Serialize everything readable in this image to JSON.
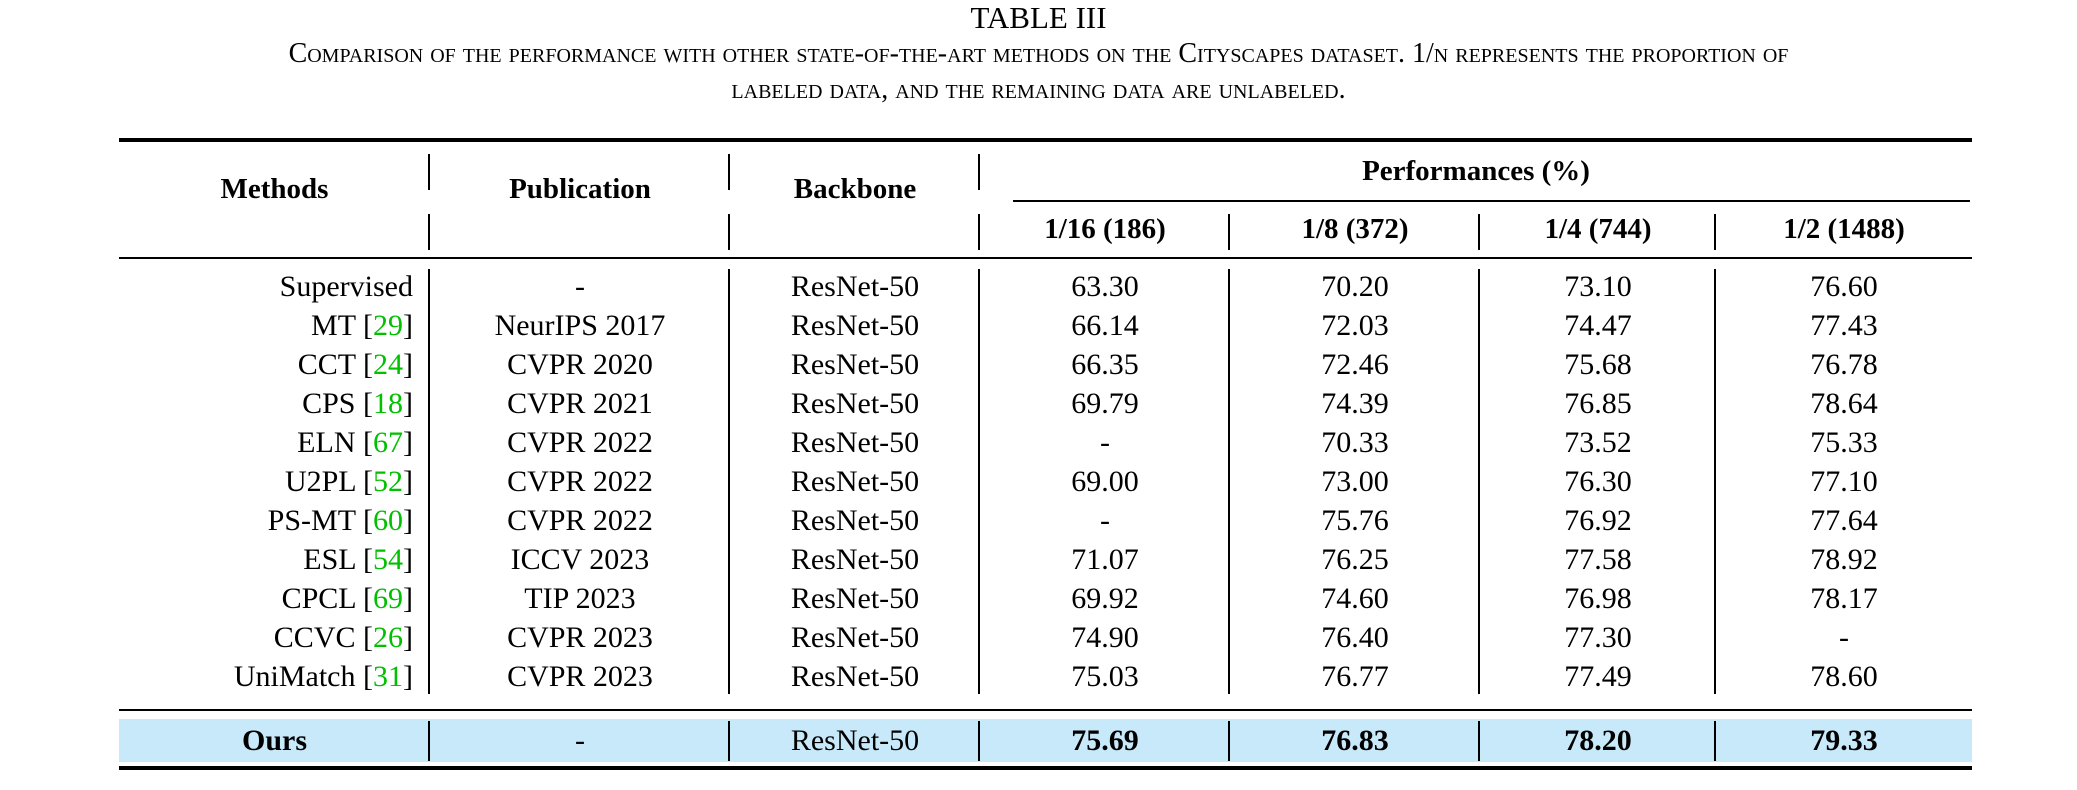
{
  "caption": {
    "table_title": "TABLE III",
    "line1": "Comparison of the performance with other state-of-the-art methods on the Cityscapes dataset. 1/n represents the proportion of",
    "line2": "labeled data, and the remaining data are unlabeled."
  },
  "header": {
    "methods": "Methods",
    "publication": "Publication",
    "backbone": "Backbone",
    "performances": "Performances (%)",
    "splits": [
      "1/16 (186)",
      "1/8 (372)",
      "1/4 (744)",
      "1/2 (1488)"
    ]
  },
  "rows": [
    {
      "method": "Supervised",
      "ref": "",
      "publication": "-",
      "backbone": "ResNet-50",
      "values": [
        "63.30",
        "70.20",
        "73.10",
        "76.60"
      ]
    },
    {
      "method": "MT",
      "ref": "29",
      "publication": "NeurIPS 2017",
      "backbone": "ResNet-50",
      "values": [
        "66.14",
        "72.03",
        "74.47",
        "77.43"
      ]
    },
    {
      "method": "CCT",
      "ref": "24",
      "publication": "CVPR 2020",
      "backbone": "ResNet-50",
      "values": [
        "66.35",
        "72.46",
        "75.68",
        "76.78"
      ]
    },
    {
      "method": "CPS",
      "ref": "18",
      "publication": "CVPR 2021",
      "backbone": "ResNet-50",
      "values": [
        "69.79",
        "74.39",
        "76.85",
        "78.64"
      ]
    },
    {
      "method": "ELN",
      "ref": "67",
      "publication": "CVPR 2022",
      "backbone": "ResNet-50",
      "values": [
        "-",
        "70.33",
        "73.52",
        "75.33"
      ]
    },
    {
      "method": "U2PL",
      "ref": "52",
      "publication": "CVPR 2022",
      "backbone": "ResNet-50",
      "values": [
        "69.00",
        "73.00",
        "76.30",
        "77.10"
      ]
    },
    {
      "method": "PS-MT",
      "ref": "60",
      "publication": "CVPR 2022",
      "backbone": "ResNet-50",
      "values": [
        "-",
        "75.76",
        "76.92",
        "77.64"
      ]
    },
    {
      "method": "ESL",
      "ref": "54",
      "publication": "ICCV 2023",
      "backbone": "ResNet-50",
      "values": [
        "71.07",
        "76.25",
        "77.58",
        "78.92"
      ]
    },
    {
      "method": "CPCL",
      "ref": "69",
      "publication": "TIP 2023",
      "backbone": "ResNet-50",
      "values": [
        "69.92",
        "74.60",
        "76.98",
        "78.17"
      ]
    },
    {
      "method": "CCVC",
      "ref": "26",
      "publication": "CVPR 2023",
      "backbone": "ResNet-50",
      "values": [
        "74.90",
        "76.40",
        "77.30",
        "-"
      ]
    },
    {
      "method": "UniMatch",
      "ref": "31",
      "publication": "CVPR 2023",
      "backbone": "ResNet-50",
      "values": [
        "75.03",
        "76.77",
        "77.49",
        "78.60"
      ]
    }
  ],
  "ours": {
    "method": "Ours",
    "publication": "-",
    "backbone": "ResNet-50",
    "values": [
      "75.69",
      "76.83",
      "78.20",
      "79.33"
    ]
  },
  "colors": {
    "ref": "#00c000",
    "highlight": "#c8e9f9"
  }
}
